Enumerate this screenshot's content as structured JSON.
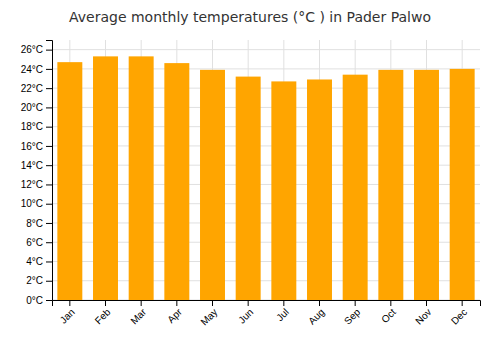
{
  "chart_data": {
    "type": "bar",
    "title": "Average monthly temperatures (°C ) in Pader Palwo",
    "categories": [
      "Jan",
      "Feb",
      "Mar",
      "Apr",
      "May",
      "Jun",
      "Jul",
      "Aug",
      "Sep",
      "Oct",
      "Nov",
      "Dec"
    ],
    "values": [
      24.7,
      25.3,
      25.3,
      24.6,
      23.9,
      23.2,
      22.7,
      22.9,
      23.4,
      23.9,
      23.9,
      24.0
    ],
    "color": "#FFA500",
    "ylim": [
      0,
      27
    ],
    "yticks": [
      {
        "value": 0,
        "label": "0°C"
      },
      {
        "value": 2,
        "label": "2°C"
      },
      {
        "value": 4,
        "label": "4°C"
      },
      {
        "value": 6,
        "label": "6°C"
      },
      {
        "value": 8,
        "label": "8°C"
      },
      {
        "value": 10,
        "label": "10°C"
      },
      {
        "value": 12,
        "label": "12°C"
      },
      {
        "value": 14,
        "label": "14°C"
      },
      {
        "value": 16,
        "label": "16°C"
      },
      {
        "value": 18,
        "label": "18°C"
      },
      {
        "value": 20,
        "label": "20°C"
      },
      {
        "value": 22,
        "label": "22°C"
      },
      {
        "value": 24,
        "label": "24°C"
      },
      {
        "value": 26,
        "label": "26°C"
      }
    ],
    "grid": true
  }
}
